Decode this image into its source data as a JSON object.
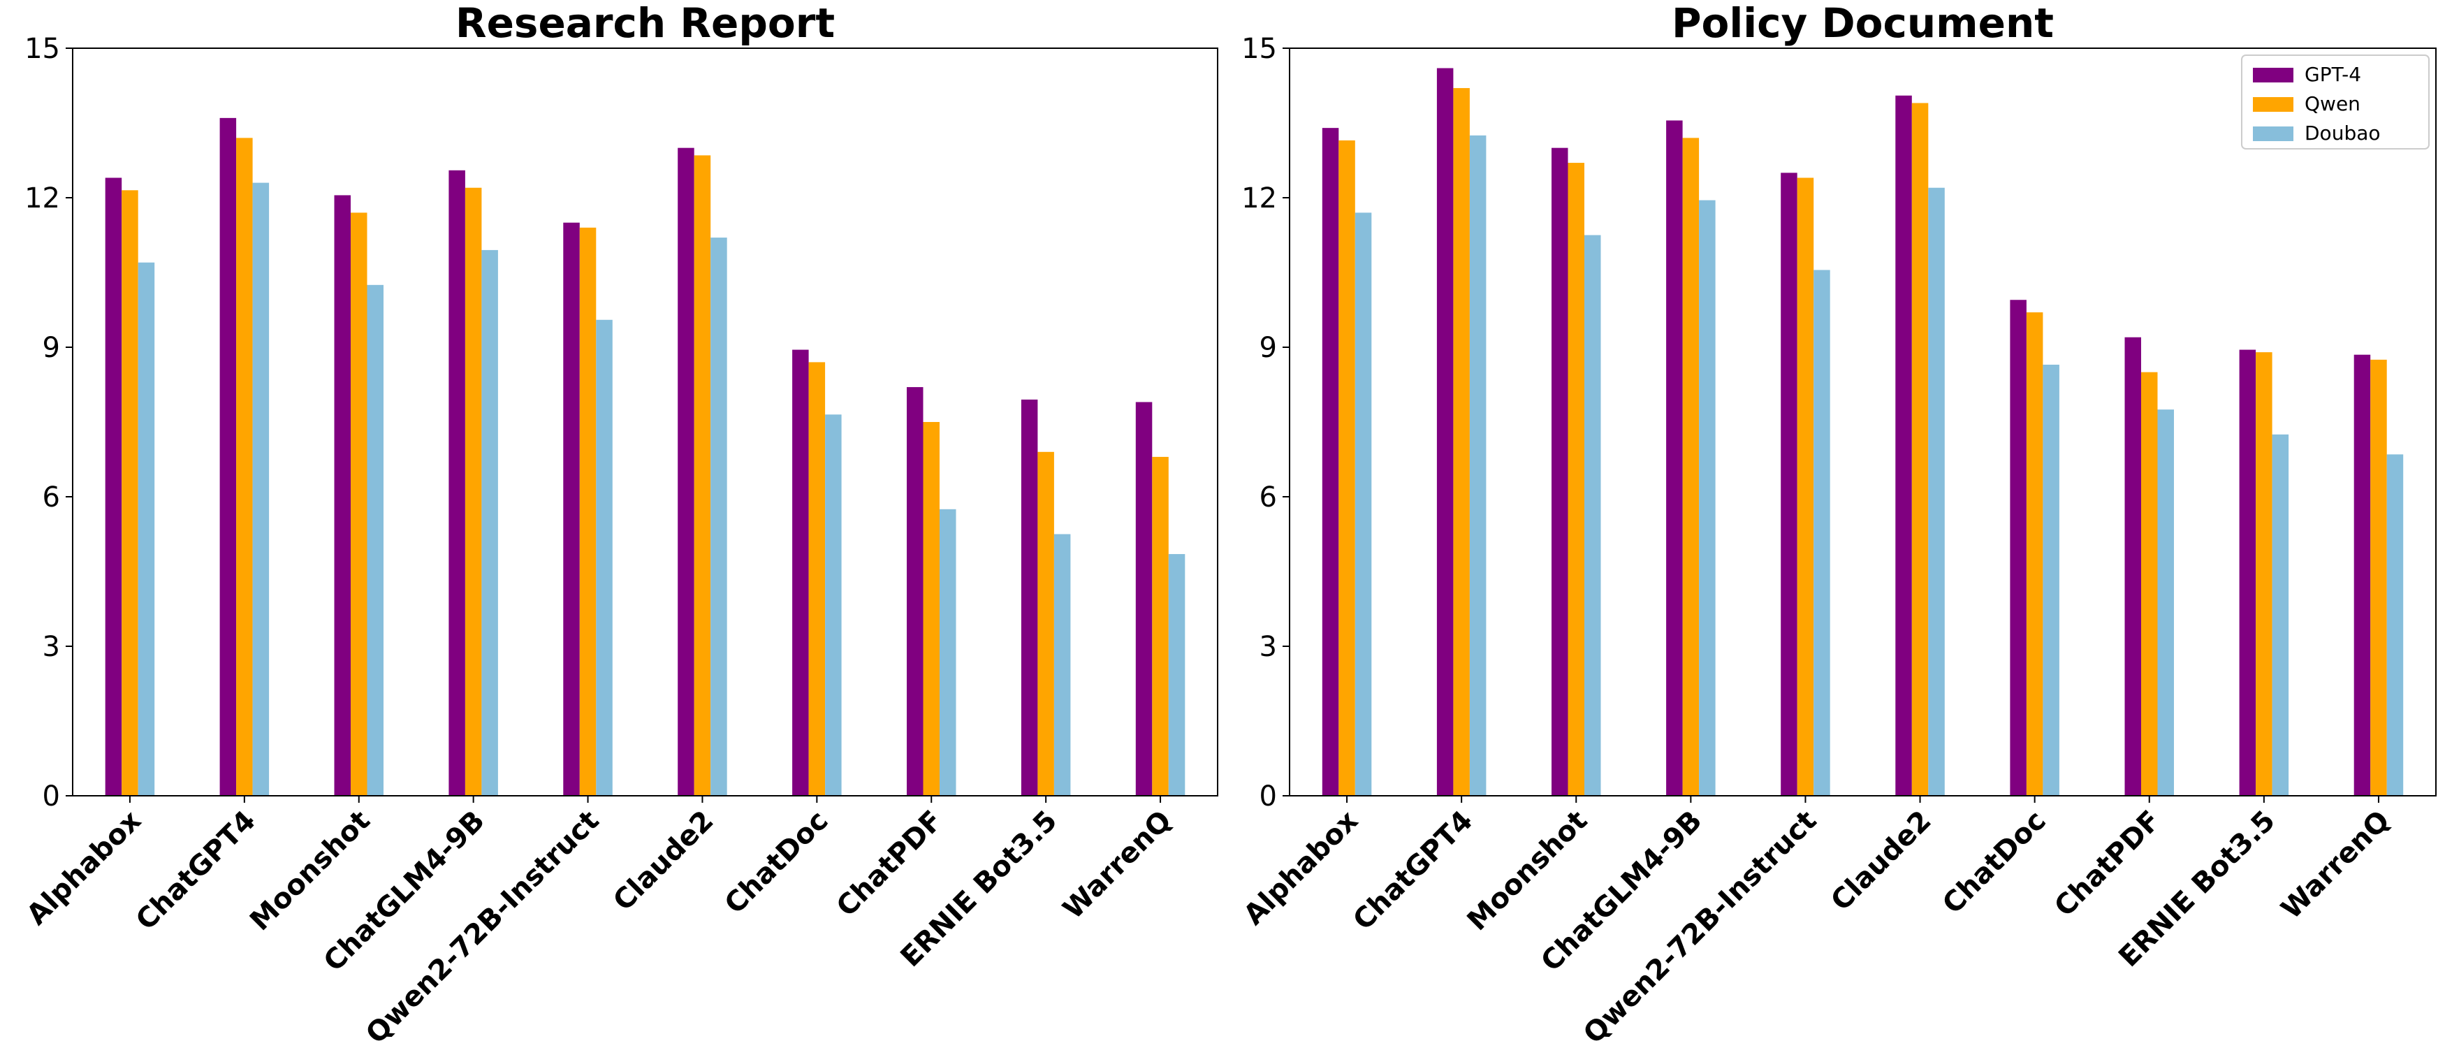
{
  "chart_data": [
    {
      "type": "bar",
      "title": "Research Report",
      "categories": [
        "Alphabox",
        "ChatGPT4",
        "Moonshot",
        "ChatGLM4-9B",
        "Qwen2-72B-Instruct",
        "Claude2",
        "ChatDoc",
        "ChatPDF",
        "ERNIE Bot3.5",
        "WarrenQ"
      ],
      "series": [
        {
          "name": "GPT-4",
          "color": "#800080",
          "values": [
            12.4,
            13.6,
            12.05,
            12.55,
            11.5,
            13.0,
            8.95,
            8.2,
            7.95,
            7.9
          ]
        },
        {
          "name": "Qwen",
          "color": "#FFA500",
          "values": [
            12.15,
            13.2,
            11.7,
            12.2,
            11.4,
            12.85,
            8.7,
            7.5,
            6.9,
            6.8
          ]
        },
        {
          "name": "Doubao",
          "color": "#87BEDB",
          "values": [
            10.7,
            12.3,
            10.25,
            10.95,
            9.55,
            11.2,
            7.65,
            5.75,
            5.25,
            4.85
          ]
        }
      ],
      "ylim": [
        0,
        15
      ],
      "yticks": [
        "0",
        "3",
        "6",
        "9",
        "12",
        "15"
      ],
      "xlabel": "",
      "ylabel": "",
      "legend": false
    },
    {
      "type": "bar",
      "title": "Policy Document",
      "categories": [
        "Alphabox",
        "ChatGPT4",
        "Moonshot",
        "ChatGLM4-9B",
        "Qwen2-72B-Instruct",
        "Claude2",
        "ChatDoc",
        "ChatPDF",
        "ERNIE Bot3.5",
        "WarrenQ"
      ],
      "series": [
        {
          "name": "GPT-4",
          "color": "#800080",
          "values": [
            13.4,
            14.6,
            13.0,
            13.55,
            12.5,
            14.05,
            9.95,
            9.2,
            8.95,
            8.85
          ]
        },
        {
          "name": "Qwen",
          "color": "#FFA500",
          "values": [
            13.15,
            14.2,
            12.7,
            13.2,
            12.4,
            13.9,
            9.7,
            8.5,
            8.9,
            8.75
          ]
        },
        {
          "name": "Doubao",
          "color": "#87BEDB",
          "values": [
            11.7,
            13.25,
            11.25,
            11.95,
            10.55,
            12.2,
            8.65,
            7.75,
            7.25,
            6.85
          ]
        }
      ],
      "ylim": [
        0,
        15
      ],
      "yticks": [
        "0",
        "3",
        "6",
        "9",
        "12",
        "15"
      ],
      "xlabel": "",
      "ylabel": "",
      "legend": true,
      "legend_position": "top-right"
    }
  ]
}
